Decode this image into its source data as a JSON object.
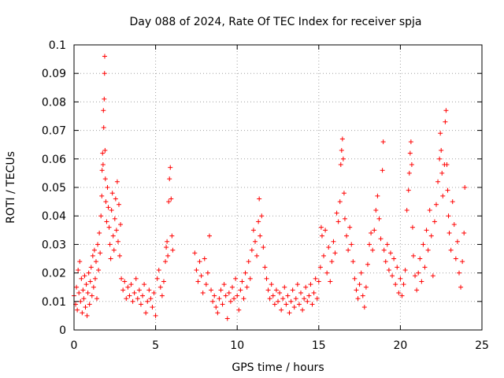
{
  "chart_data": {
    "type": "scatter",
    "title": "Day 088 of 2024, Rate Of TEC Index for receiver spja",
    "xlabel": "GPS time / hours",
    "ylabel": "ROTI / TECUs",
    "xlim": [
      0,
      25
    ],
    "ylim": [
      0,
      0.1
    ],
    "xticks": [
      0,
      5,
      10,
      15,
      20,
      25
    ],
    "xtick_labels": [
      "0",
      "5",
      "10",
      "15",
      "20",
      "25"
    ],
    "yticks": [
      0,
      0.01,
      0.02,
      0.03,
      0.04,
      0.05,
      0.06,
      0.07,
      0.08,
      0.09,
      0.1
    ],
    "ytick_labels": [
      "0",
      "0.01",
      "0.02",
      "0.03",
      "0.04",
      "0.05",
      "0.06",
      "0.07",
      "0.08",
      "0.09",
      "0.1"
    ],
    "grid": true,
    "marker": "+",
    "color": "#ff0000",
    "series": [
      {
        "name": "ROTI",
        "points": [
          [
            0.0,
            0.012
          ],
          [
            0.1,
            0.009
          ],
          [
            0.15,
            0.015
          ],
          [
            0.2,
            0.007
          ],
          [
            0.25,
            0.021
          ],
          [
            0.3,
            0.013
          ],
          [
            0.35,
            0.024
          ],
          [
            0.4,
            0.01
          ],
          [
            0.45,
            0.018
          ],
          [
            0.5,
            0.006
          ],
          [
            0.55,
            0.014
          ],
          [
            0.6,
            0.011
          ],
          [
            0.65,
            0.019
          ],
          [
            0.7,
            0.008
          ],
          [
            0.75,
            0.016
          ],
          [
            0.8,
            0.005
          ],
          [
            0.85,
            0.013
          ],
          [
            0.9,
            0.02
          ],
          [
            0.95,
            0.009
          ],
          [
            1.0,
            0.017
          ],
          [
            1.05,
            0.022
          ],
          [
            1.1,
            0.012
          ],
          [
            1.15,
            0.026
          ],
          [
            1.2,
            0.015
          ],
          [
            1.25,
            0.028
          ],
          [
            1.3,
            0.018
          ],
          [
            1.35,
            0.024
          ],
          [
            1.4,
            0.011
          ],
          [
            1.45,
            0.03
          ],
          [
            1.5,
            0.021
          ],
          [
            1.55,
            0.034
          ],
          [
            1.6,
            0.027
          ],
          [
            1.65,
            0.04
          ],
          [
            1.7,
            0.047
          ],
          [
            1.72,
            0.056
          ],
          [
            1.75,
            0.062
          ],
          [
            1.78,
            0.058
          ],
          [
            1.8,
            0.077
          ],
          [
            1.82,
            0.071
          ],
          [
            1.85,
            0.081
          ],
          [
            1.87,
            0.09
          ],
          [
            1.88,
            0.096
          ],
          [
            1.9,
            0.063
          ],
          [
            1.92,
            0.053
          ],
          [
            1.95,
            0.045
          ],
          [
            2.0,
            0.038
          ],
          [
            2.05,
            0.05
          ],
          [
            2.1,
            0.043
          ],
          [
            2.15,
            0.036
          ],
          [
            2.2,
            0.03
          ],
          [
            2.25,
            0.025
          ],
          [
            2.3,
            0.042
          ],
          [
            2.35,
            0.048
          ],
          [
            2.4,
            0.033
          ],
          [
            2.45,
            0.028
          ],
          [
            2.5,
            0.039
          ],
          [
            2.55,
            0.046
          ],
          [
            2.6,
            0.035
          ],
          [
            2.65,
            0.052
          ],
          [
            2.7,
            0.031
          ],
          [
            2.75,
            0.044
          ],
          [
            2.8,
            0.026
          ],
          [
            2.85,
            0.037
          ],
          [
            2.9,
            0.018
          ],
          [
            3.0,
            0.014
          ],
          [
            3.1,
            0.017
          ],
          [
            3.2,
            0.011
          ],
          [
            3.3,
            0.015
          ],
          [
            3.4,
            0.012
          ],
          [
            3.5,
            0.016
          ],
          [
            3.6,
            0.01
          ],
          [
            3.7,
            0.013
          ],
          [
            3.8,
            0.018
          ],
          [
            3.9,
            0.011
          ],
          [
            4.0,
            0.014
          ],
          [
            4.1,
            0.009
          ],
          [
            4.2,
            0.012
          ],
          [
            4.3,
            0.016
          ],
          [
            4.4,
            0.006
          ],
          [
            4.5,
            0.01
          ],
          [
            4.6,
            0.014
          ],
          [
            4.7,
            0.011
          ],
          [
            4.8,
            0.008
          ],
          [
            4.9,
            0.013
          ],
          [
            5.0,
            0.005
          ],
          [
            5.1,
            0.018
          ],
          [
            5.2,
            0.021
          ],
          [
            5.3,
            0.015
          ],
          [
            5.4,
            0.012
          ],
          [
            5.5,
            0.017
          ],
          [
            5.6,
            0.024
          ],
          [
            5.65,
            0.029
          ],
          [
            5.7,
            0.031
          ],
          [
            5.75,
            0.026
          ],
          [
            5.8,
            0.045
          ],
          [
            5.85,
            0.053
          ],
          [
            5.9,
            0.057
          ],
          [
            5.95,
            0.046
          ],
          [
            6.0,
            0.033
          ],
          [
            6.05,
            0.028
          ],
          [
            7.4,
            0.027
          ],
          [
            7.5,
            0.021
          ],
          [
            7.6,
            0.017
          ],
          [
            7.7,
            0.024
          ],
          [
            7.8,
            0.019
          ],
          [
            7.9,
            0.013
          ],
          [
            8.0,
            0.025
          ],
          [
            8.1,
            0.016
          ],
          [
            8.2,
            0.02
          ],
          [
            8.3,
            0.033
          ],
          [
            8.4,
            0.014
          ],
          [
            8.5,
            0.01
          ],
          [
            8.6,
            0.012
          ],
          [
            8.7,
            0.008
          ],
          [
            8.8,
            0.006
          ],
          [
            8.9,
            0.011
          ],
          [
            9.0,
            0.014
          ],
          [
            9.1,
            0.009
          ],
          [
            9.2,
            0.016
          ],
          [
            9.3,
            0.012
          ],
          [
            9.4,
            0.004
          ],
          [
            9.5,
            0.013
          ],
          [
            9.6,
            0.01
          ],
          [
            9.7,
            0.015
          ],
          [
            9.8,
            0.011
          ],
          [
            9.9,
            0.018
          ],
          [
            10.0,
            0.012
          ],
          [
            10.1,
            0.007
          ],
          [
            10.2,
            0.014
          ],
          [
            10.3,
            0.017
          ],
          [
            10.4,
            0.011
          ],
          [
            10.5,
            0.02
          ],
          [
            10.6,
            0.015
          ],
          [
            10.7,
            0.024
          ],
          [
            10.8,
            0.018
          ],
          [
            10.9,
            0.028
          ],
          [
            11.0,
            0.035
          ],
          [
            11.1,
            0.031
          ],
          [
            11.2,
            0.026
          ],
          [
            11.3,
            0.038
          ],
          [
            11.35,
            0.046
          ],
          [
            11.4,
            0.033
          ],
          [
            11.5,
            0.04
          ],
          [
            11.6,
            0.029
          ],
          [
            11.7,
            0.022
          ],
          [
            11.8,
            0.018
          ],
          [
            11.9,
            0.014
          ],
          [
            12.0,
            0.011
          ],
          [
            12.1,
            0.016
          ],
          [
            12.2,
            0.012
          ],
          [
            12.3,
            0.009
          ],
          [
            12.4,
            0.014
          ],
          [
            12.5,
            0.01
          ],
          [
            12.6,
            0.013
          ],
          [
            12.7,
            0.007
          ],
          [
            12.8,
            0.011
          ],
          [
            12.9,
            0.015
          ],
          [
            13.0,
            0.009
          ],
          [
            13.1,
            0.012
          ],
          [
            13.2,
            0.006
          ],
          [
            13.3,
            0.01
          ],
          [
            13.4,
            0.014
          ],
          [
            13.5,
            0.008
          ],
          [
            13.6,
            0.011
          ],
          [
            13.7,
            0.016
          ],
          [
            13.8,
            0.009
          ],
          [
            13.9,
            0.013
          ],
          [
            14.0,
            0.007
          ],
          [
            14.1,
            0.011
          ],
          [
            14.2,
            0.015
          ],
          [
            14.3,
            0.01
          ],
          [
            14.4,
            0.012
          ],
          [
            14.5,
            0.016
          ],
          [
            14.6,
            0.009
          ],
          [
            14.7,
            0.013
          ],
          [
            14.8,
            0.018
          ],
          [
            14.9,
            0.011
          ],
          [
            15.0,
            0.017
          ],
          [
            15.1,
            0.022
          ],
          [
            15.15,
            0.036
          ],
          [
            15.2,
            0.033
          ],
          [
            15.3,
            0.026
          ],
          [
            15.4,
            0.035
          ],
          [
            15.5,
            0.02
          ],
          [
            15.6,
            0.029
          ],
          [
            15.7,
            0.017
          ],
          [
            15.8,
            0.024
          ],
          [
            15.9,
            0.031
          ],
          [
            16.0,
            0.027
          ],
          [
            16.1,
            0.041
          ],
          [
            16.2,
            0.038
          ],
          [
            16.3,
            0.045
          ],
          [
            16.35,
            0.058
          ],
          [
            16.4,
            0.063
          ],
          [
            16.45,
            0.067
          ],
          [
            16.5,
            0.06
          ],
          [
            16.55,
            0.048
          ],
          [
            16.6,
            0.039
          ],
          [
            16.7,
            0.033
          ],
          [
            16.8,
            0.028
          ],
          [
            16.9,
            0.036
          ],
          [
            17.0,
            0.03
          ],
          [
            17.1,
            0.024
          ],
          [
            17.2,
            0.018
          ],
          [
            17.3,
            0.014
          ],
          [
            17.4,
            0.011
          ],
          [
            17.5,
            0.016
          ],
          [
            17.6,
            0.02
          ],
          [
            17.7,
            0.012
          ],
          [
            17.8,
            0.008
          ],
          [
            17.9,
            0.015
          ],
          [
            18.0,
            0.023
          ],
          [
            18.1,
            0.03
          ],
          [
            18.2,
            0.034
          ],
          [
            18.3,
            0.028
          ],
          [
            18.4,
            0.035
          ],
          [
            18.5,
            0.042
          ],
          [
            18.6,
            0.047
          ],
          [
            18.7,
            0.039
          ],
          [
            18.8,
            0.032
          ],
          [
            18.9,
            0.056
          ],
          [
            18.95,
            0.066
          ],
          [
            19.0,
            0.028
          ],
          [
            19.1,
            0.024
          ],
          [
            19.2,
            0.03
          ],
          [
            19.3,
            0.021
          ],
          [
            19.4,
            0.027
          ],
          [
            19.5,
            0.019
          ],
          [
            19.6,
            0.025
          ],
          [
            19.7,
            0.016
          ],
          [
            19.8,
            0.022
          ],
          [
            19.9,
            0.013
          ],
          [
            20.0,
            0.018
          ],
          [
            20.1,
            0.012
          ],
          [
            20.2,
            0.016
          ],
          [
            20.3,
            0.021
          ],
          [
            20.4,
            0.042
          ],
          [
            20.5,
            0.049
          ],
          [
            20.55,
            0.055
          ],
          [
            20.6,
            0.062
          ],
          [
            20.65,
            0.066
          ],
          [
            20.7,
            0.058
          ],
          [
            20.75,
            0.036
          ],
          [
            20.8,
            0.026
          ],
          [
            20.9,
            0.019
          ],
          [
            21.0,
            0.014
          ],
          [
            21.1,
            0.02
          ],
          [
            21.2,
            0.025
          ],
          [
            21.3,
            0.017
          ],
          [
            21.4,
            0.03
          ],
          [
            21.5,
            0.022
          ],
          [
            21.6,
            0.035
          ],
          [
            21.7,
            0.028
          ],
          [
            21.8,
            0.042
          ],
          [
            21.9,
            0.033
          ],
          [
            22.0,
            0.019
          ],
          [
            22.1,
            0.038
          ],
          [
            22.2,
            0.044
          ],
          [
            22.3,
            0.052
          ],
          [
            22.4,
            0.06
          ],
          [
            22.45,
            0.069
          ],
          [
            22.5,
            0.063
          ],
          [
            22.55,
            0.055
          ],
          [
            22.6,
            0.047
          ],
          [
            22.7,
            0.058
          ],
          [
            22.75,
            0.073
          ],
          [
            22.8,
            0.077
          ],
          [
            22.85,
            0.058
          ],
          [
            22.9,
            0.049
          ],
          [
            22.95,
            0.04
          ],
          [
            23.0,
            0.034
          ],
          [
            23.1,
            0.028
          ],
          [
            23.2,
            0.045
          ],
          [
            23.3,
            0.037
          ],
          [
            23.4,
            0.025
          ],
          [
            23.5,
            0.031
          ],
          [
            23.6,
            0.02
          ],
          [
            23.7,
            0.015
          ],
          [
            23.8,
            0.024
          ],
          [
            23.9,
            0.034
          ],
          [
            23.95,
            0.05
          ]
        ]
      }
    ]
  }
}
